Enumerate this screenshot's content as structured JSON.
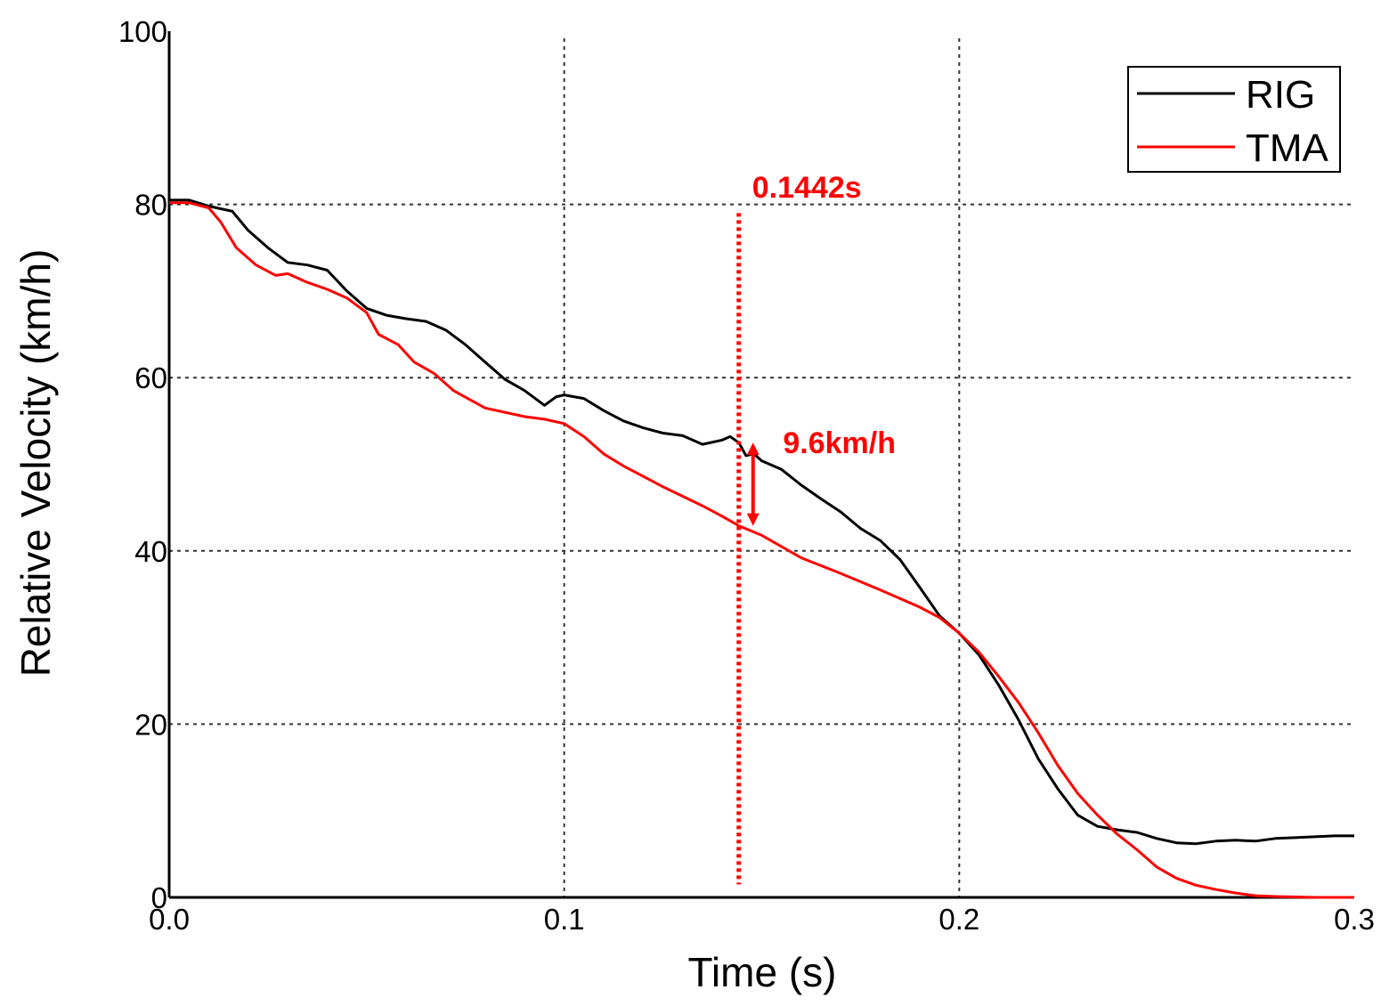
{
  "chart_data": {
    "type": "line",
    "xlabel": "Time (s)",
    "ylabel": "Relative Velocity (km/h)",
    "xlim": [
      0.0,
      0.3
    ],
    "ylim": [
      0,
      100
    ],
    "x_ticks": [
      0.0,
      0.1,
      0.2,
      0.3
    ],
    "x_tick_labels": [
      "0.0",
      "0.1",
      "0.2",
      "0.3"
    ],
    "y_ticks": [
      0,
      20,
      40,
      60,
      80,
      100
    ],
    "y_tick_labels": [
      "0",
      "20",
      "40",
      "60",
      "80",
      "100"
    ],
    "grid": "dotted",
    "legend_position": "top-right",
    "series": [
      {
        "name": "RIG",
        "color": "#000000",
        "points": [
          [
            0.0,
            80.5
          ],
          [
            0.005,
            80.5
          ],
          [
            0.01,
            79.8
          ],
          [
            0.016,
            79.2
          ],
          [
            0.02,
            77.0
          ],
          [
            0.025,
            75.0
          ],
          [
            0.03,
            73.3
          ],
          [
            0.035,
            73.0
          ],
          [
            0.04,
            72.4
          ],
          [
            0.045,
            70.0
          ],
          [
            0.05,
            68.0
          ],
          [
            0.055,
            67.2
          ],
          [
            0.06,
            66.8
          ],
          [
            0.065,
            66.5
          ],
          [
            0.07,
            65.5
          ],
          [
            0.075,
            63.8
          ],
          [
            0.08,
            61.8
          ],
          [
            0.085,
            59.8
          ],
          [
            0.09,
            58.5
          ],
          [
            0.095,
            56.8
          ],
          [
            0.098,
            57.8
          ],
          [
            0.1,
            58.0
          ],
          [
            0.105,
            57.6
          ],
          [
            0.11,
            56.2
          ],
          [
            0.115,
            55.0
          ],
          [
            0.12,
            54.2
          ],
          [
            0.125,
            53.6
          ],
          [
            0.13,
            53.3
          ],
          [
            0.135,
            52.3
          ],
          [
            0.14,
            52.8
          ],
          [
            0.142,
            53.2
          ],
          [
            0.1442,
            52.5
          ],
          [
            0.146,
            51.0
          ],
          [
            0.148,
            51.2
          ],
          [
            0.15,
            50.4
          ],
          [
            0.155,
            49.4
          ],
          [
            0.16,
            47.6
          ],
          [
            0.165,
            46.0
          ],
          [
            0.17,
            44.5
          ],
          [
            0.175,
            42.6
          ],
          [
            0.18,
            41.2
          ],
          [
            0.185,
            39.0
          ],
          [
            0.19,
            35.8
          ],
          [
            0.195,
            32.5
          ],
          [
            0.2,
            30.5
          ],
          [
            0.205,
            28.0
          ],
          [
            0.21,
            24.5
          ],
          [
            0.215,
            20.5
          ],
          [
            0.22,
            16.0
          ],
          [
            0.225,
            12.5
          ],
          [
            0.23,
            9.5
          ],
          [
            0.235,
            8.2
          ],
          [
            0.24,
            7.8
          ],
          [
            0.245,
            7.5
          ],
          [
            0.25,
            6.8
          ],
          [
            0.255,
            6.3
          ],
          [
            0.26,
            6.2
          ],
          [
            0.265,
            6.5
          ],
          [
            0.27,
            6.6
          ],
          [
            0.275,
            6.5
          ],
          [
            0.28,
            6.8
          ],
          [
            0.285,
            6.9
          ],
          [
            0.29,
            7.0
          ],
          [
            0.295,
            7.1
          ],
          [
            0.3,
            7.1
          ]
        ]
      },
      {
        "name": "TMA",
        "color": "#ff0000",
        "points": [
          [
            0.0,
            80.2
          ],
          [
            0.005,
            80.2
          ],
          [
            0.01,
            79.6
          ],
          [
            0.013,
            78.0
          ],
          [
            0.017,
            75.0
          ],
          [
            0.022,
            73.0
          ],
          [
            0.027,
            71.8
          ],
          [
            0.03,
            72.0
          ],
          [
            0.035,
            71.0
          ],
          [
            0.04,
            70.2
          ],
          [
            0.045,
            69.2
          ],
          [
            0.05,
            67.5
          ],
          [
            0.053,
            65.0
          ],
          [
            0.058,
            63.8
          ],
          [
            0.062,
            61.8
          ],
          [
            0.067,
            60.5
          ],
          [
            0.072,
            58.5
          ],
          [
            0.08,
            56.5
          ],
          [
            0.09,
            55.5
          ],
          [
            0.095,
            55.2
          ],
          [
            0.1,
            54.7
          ],
          [
            0.105,
            53.2
          ],
          [
            0.11,
            51.2
          ],
          [
            0.115,
            49.8
          ],
          [
            0.12,
            48.6
          ],
          [
            0.125,
            47.4
          ],
          [
            0.13,
            46.3
          ],
          [
            0.135,
            45.2
          ],
          [
            0.14,
            44.0
          ],
          [
            0.1442,
            42.9
          ],
          [
            0.15,
            41.8
          ],
          [
            0.16,
            39.2
          ],
          [
            0.17,
            37.4
          ],
          [
            0.18,
            35.5
          ],
          [
            0.19,
            33.5
          ],
          [
            0.195,
            32.3
          ],
          [
            0.2,
            30.5
          ],
          [
            0.205,
            28.3
          ],
          [
            0.21,
            25.5
          ],
          [
            0.215,
            22.5
          ],
          [
            0.22,
            19.0
          ],
          [
            0.225,
            15.2
          ],
          [
            0.23,
            12.0
          ],
          [
            0.235,
            9.5
          ],
          [
            0.24,
            7.3
          ],
          [
            0.245,
            5.5
          ],
          [
            0.25,
            3.5
          ],
          [
            0.255,
            2.2
          ],
          [
            0.26,
            1.4
          ],
          [
            0.265,
            0.9
          ],
          [
            0.27,
            0.5
          ],
          [
            0.275,
            0.2
          ],
          [
            0.28,
            0.1
          ],
          [
            0.29,
            0.0
          ],
          [
            0.3,
            0.0
          ]
        ]
      }
    ],
    "annotations": [
      {
        "kind": "vertical-line",
        "x": 0.1442,
        "y_range": [
          1.5,
          79
        ],
        "color": "#ff0000",
        "style": "dotted"
      },
      {
        "kind": "text",
        "text": "0.1442s",
        "x": 0.1442,
        "y": 82,
        "color": "#ff0000"
      },
      {
        "kind": "double-arrow",
        "x": 0.1442,
        "y_range": [
          42.9,
          52.5
        ],
        "color": "#ff0000"
      },
      {
        "kind": "text",
        "text": "9.6km/h",
        "x": 0.152,
        "y": 52.5,
        "color": "#ff0000"
      }
    ]
  }
}
